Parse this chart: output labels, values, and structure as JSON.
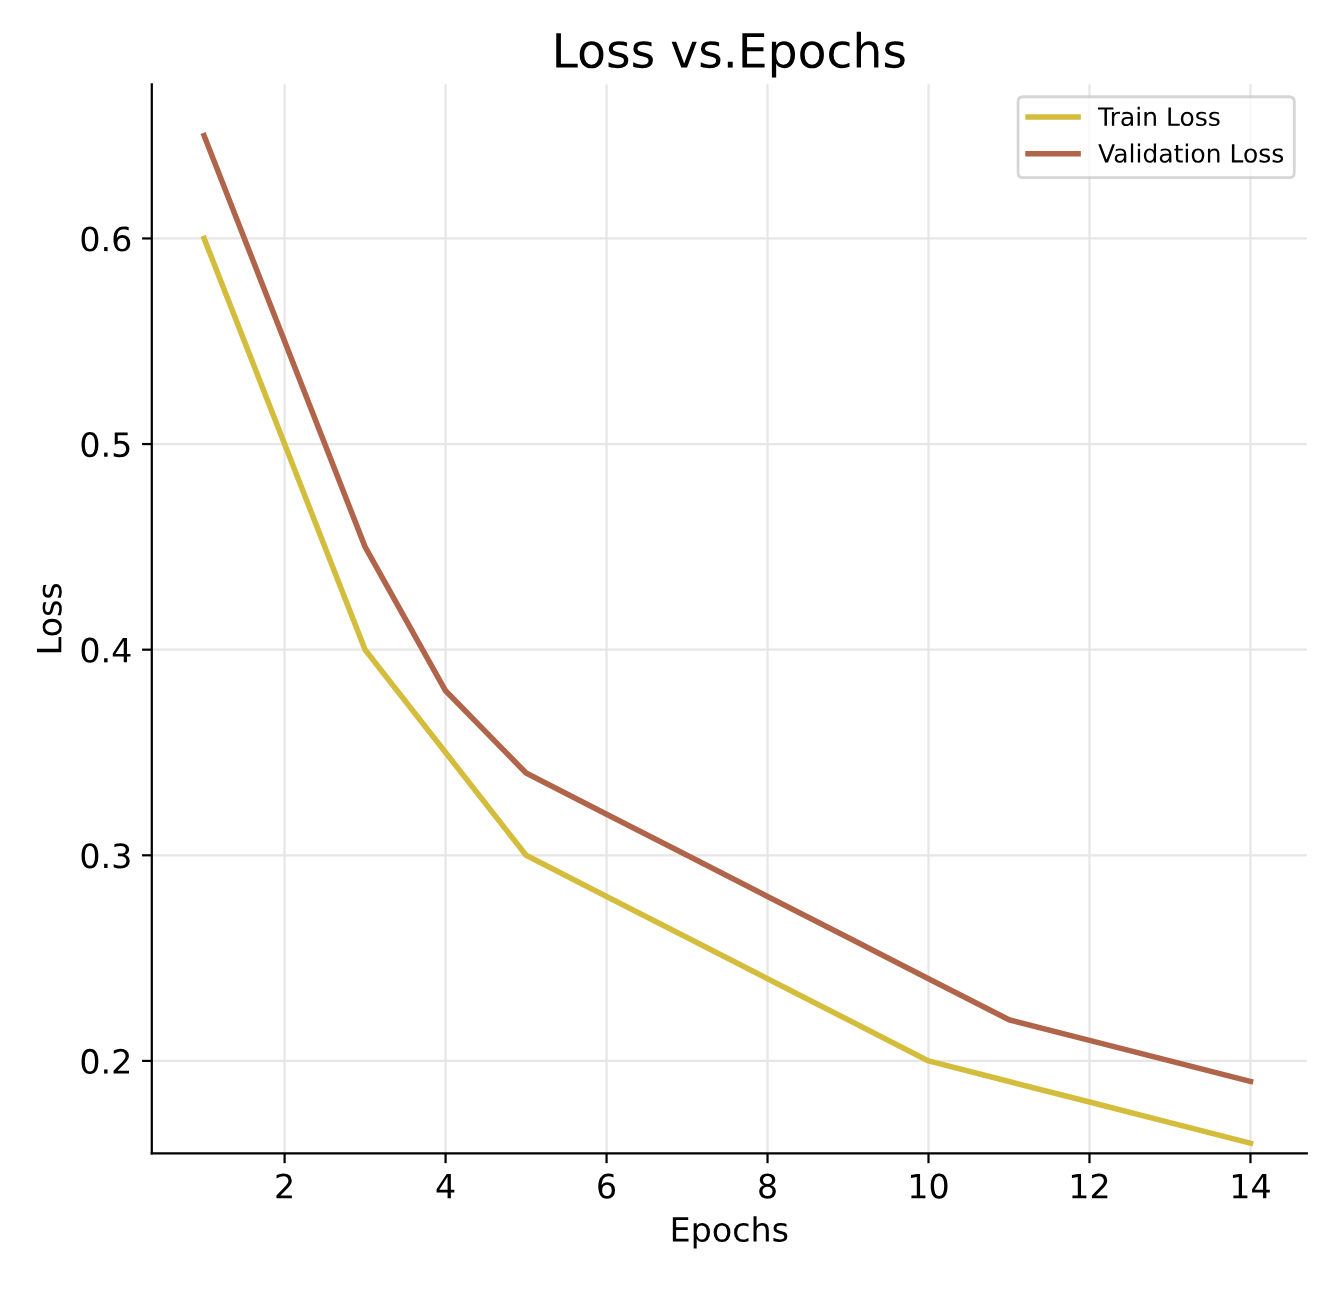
{
  "chart_data": {
    "type": "line",
    "title": "Loss vs.Epochs",
    "xlabel": "Epochs",
    "ylabel": "Loss",
    "x": [
      1,
      2,
      3,
      4,
      5,
      6,
      7,
      8,
      9,
      10,
      11,
      12,
      13,
      14
    ],
    "series": [
      {
        "name": "Train Loss",
        "color": "#d4bd3c",
        "values": [
          0.6,
          0.5,
          0.4,
          0.35,
          0.3,
          0.28,
          0.26,
          0.24,
          0.22,
          0.2,
          0.19,
          0.18,
          0.17,
          0.16
        ]
      },
      {
        "name": "Validation Loss",
        "color": "#b0644a",
        "values": [
          0.65,
          0.55,
          0.45,
          0.38,
          0.34,
          0.32,
          0.3,
          0.28,
          0.26,
          0.24,
          0.22,
          0.21,
          0.2,
          0.19
        ]
      }
    ],
    "xlim": [
      0.35,
      14.7
    ],
    "ylim": [
      0.155,
      0.675
    ],
    "xticks": [
      2,
      4,
      6,
      8,
      10,
      12,
      14
    ],
    "yticks": [
      0.2,
      0.3,
      0.4,
      0.5,
      0.6
    ],
    "grid": true,
    "legend": "top right",
    "marker": "none",
    "line_style": "solid"
  }
}
